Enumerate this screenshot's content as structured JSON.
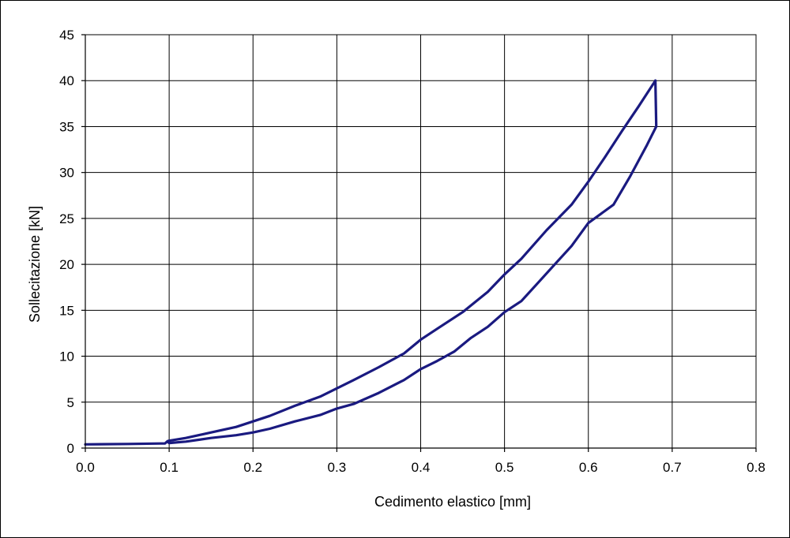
{
  "chart_data": {
    "type": "line",
    "title": "",
    "xlabel": "Cedimento elastico [mm]",
    "ylabel": "Sollecitazione [kN]",
    "xlim": [
      0,
      0.8
    ],
    "ylim": [
      0,
      45
    ],
    "x_ticks": [
      "0.0",
      "0.1",
      "0.2",
      "0.3",
      "0.4",
      "0.5",
      "0.6",
      "0.7",
      "0.8"
    ],
    "y_ticks": [
      "0",
      "5",
      "10",
      "15",
      "20",
      "25",
      "30",
      "35",
      "40",
      "45"
    ],
    "grid": true,
    "legend": false,
    "line_color": "#1a1a80",
    "series": [
      {
        "values": [
          [
            0.0,
            0.4
          ],
          [
            0.05,
            0.45
          ],
          [
            0.09,
            0.5
          ],
          [
            0.095,
            0.5
          ],
          [
            0.098,
            0.75
          ],
          [
            0.1,
            0.8
          ],
          [
            0.12,
            1.1
          ],
          [
            0.15,
            1.7
          ],
          [
            0.18,
            2.3
          ],
          [
            0.2,
            2.9
          ],
          [
            0.22,
            3.5
          ],
          [
            0.25,
            4.6
          ],
          [
            0.28,
            5.6
          ],
          [
            0.3,
            6.5
          ],
          [
            0.32,
            7.4
          ],
          [
            0.35,
            8.8
          ],
          [
            0.38,
            10.3
          ],
          [
            0.4,
            11.8
          ],
          [
            0.42,
            13.0
          ],
          [
            0.45,
            14.8
          ],
          [
            0.48,
            17.0
          ],
          [
            0.5,
            18.9
          ],
          [
            0.52,
            20.6
          ],
          [
            0.55,
            23.7
          ],
          [
            0.58,
            26.5
          ],
          [
            0.6,
            29.0
          ],
          [
            0.62,
            31.7
          ],
          [
            0.64,
            34.5
          ],
          [
            0.66,
            37.2
          ],
          [
            0.67,
            38.6
          ],
          [
            0.68,
            40.0
          ]
        ]
      },
      {
        "values": [
          [
            0.68,
            40.0
          ],
          [
            0.681,
            35.0
          ],
          [
            0.67,
            33.0
          ],
          [
            0.65,
            29.6
          ],
          [
            0.63,
            26.5
          ],
          [
            0.6,
            24.5
          ],
          [
            0.58,
            22.0
          ],
          [
            0.56,
            20.0
          ],
          [
            0.54,
            18.0
          ],
          [
            0.52,
            16.0
          ],
          [
            0.5,
            14.8
          ],
          [
            0.48,
            13.2
          ],
          [
            0.46,
            12.0
          ],
          [
            0.44,
            10.5
          ],
          [
            0.42,
            9.5
          ],
          [
            0.4,
            8.6
          ],
          [
            0.38,
            7.4
          ],
          [
            0.35,
            6.0
          ],
          [
            0.32,
            4.8
          ],
          [
            0.3,
            4.3
          ],
          [
            0.28,
            3.6
          ],
          [
            0.25,
            2.9
          ],
          [
            0.22,
            2.1
          ],
          [
            0.2,
            1.7
          ],
          [
            0.18,
            1.4
          ],
          [
            0.15,
            1.1
          ],
          [
            0.12,
            0.7
          ],
          [
            0.1,
            0.55
          ],
          [
            0.098,
            0.7
          ],
          [
            0.1,
            0.8
          ]
        ]
      }
    ]
  }
}
